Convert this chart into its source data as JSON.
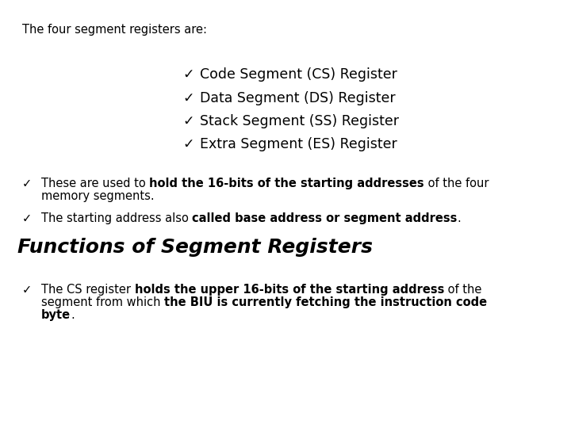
{
  "bg_color": "#ffffff",
  "text_color": "#000000",
  "intro_text": "The four segment registers are:",
  "check": "✓",
  "centered_items": [
    "Code Segment (CS) Register",
    "Data Segment (DS) Register",
    "Stack Segment (SS) Register",
    "Extra Segment (ES) Register"
  ],
  "section_title": "Functions of Segment Registers",
  "font_family": "DejaVu Sans",
  "intro_fontsize": 10.5,
  "centered_fontsize": 12.5,
  "body_fontsize": 10.5,
  "section_title_fontsize": 18
}
